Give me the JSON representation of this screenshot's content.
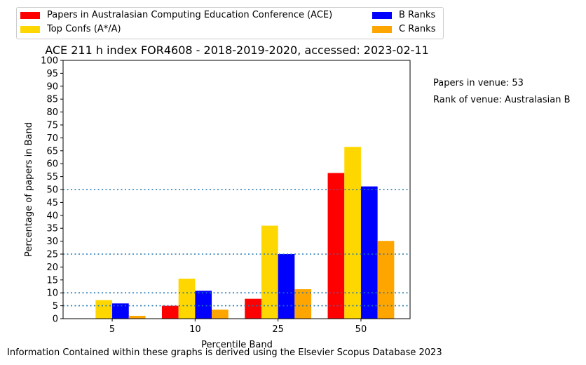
{
  "chart_data": {
    "type": "bar",
    "title": "ACE 211 h index FOR4608 - 2018-2019-2020, accessed: 2023-02-11",
    "xlabel": "Percentile Band",
    "ylabel": "Percentage of papers in Band",
    "categories": [
      "5",
      "10",
      "25",
      "50"
    ],
    "ylim": [
      0,
      100
    ],
    "yticks": [
      0,
      5,
      10,
      15,
      20,
      25,
      30,
      35,
      40,
      45,
      50,
      55,
      60,
      65,
      70,
      75,
      80,
      85,
      90,
      95,
      100
    ],
    "reference_lines": [
      5,
      10,
      25,
      50
    ],
    "grid": false,
    "legend_position": "top",
    "series": [
      {
        "name": "Papers in Australasian Computing Education Conference (ACE)",
        "color": "#ff0000",
        "values": [
          0,
          5,
          7.7,
          56.4
        ]
      },
      {
        "name": "Top Confs (A*/A)",
        "color": "#ffd700",
        "values": [
          7.2,
          15.5,
          36,
          66.5
        ]
      },
      {
        "name": "B Ranks",
        "color": "#0000ff",
        "values": [
          5.9,
          10.8,
          25,
          51.2
        ]
      },
      {
        "name": "C Ranks",
        "color": "#ffa500",
        "values": [
          1.1,
          3.5,
          11.4,
          30.1
        ]
      }
    ]
  },
  "side_notes": {
    "papers_in_venue": "Papers in venue: 53",
    "rank_of_venue": "Rank of venue: Australasian B"
  },
  "footer": "Information Contained within these graphs is derived using the Elsevier Scopus Database 2023"
}
